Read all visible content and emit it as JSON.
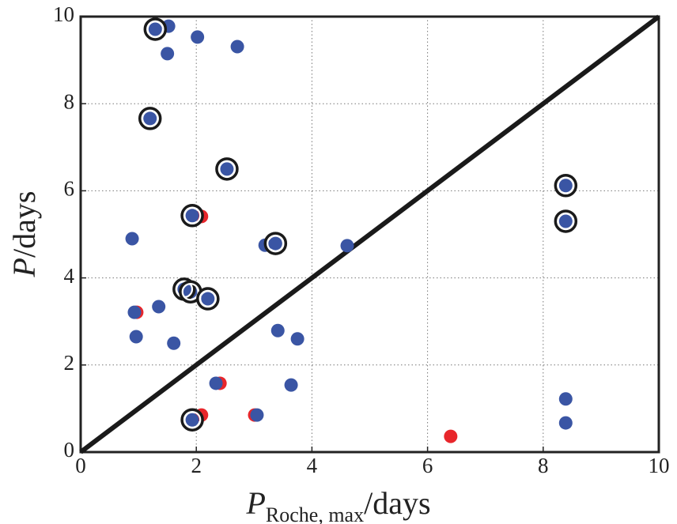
{
  "chart_data": {
    "type": "scatter",
    "x_label": {
      "symbol": "P",
      "subscript": "Roche, max",
      "unit": "/days"
    },
    "y_label": {
      "symbol": "P",
      "unit": "/days"
    },
    "xlim": [
      0,
      10
    ],
    "ylim": [
      0,
      10
    ],
    "xticks": [
      0,
      2,
      4,
      6,
      8,
      10
    ],
    "yticks": [
      0,
      2,
      4,
      6,
      8,
      10
    ],
    "grid": true,
    "reference_line": {
      "x": [
        0,
        10
      ],
      "values": [
        0,
        10
      ],
      "color": "#1a1a1a"
    },
    "series": [
      {
        "color": "#e8262b",
        "marker": "dot",
        "x": [
          2.09,
          0.97,
          2.41,
          3.01,
          2.09,
          6.4
        ],
        "values": [
          5.41,
          3.21,
          1.58,
          0.85,
          0.85,
          0.36
        ]
      },
      {
        "color": "#3a55a4",
        "marker": "dot",
        "x": [
          1.29,
          1.52,
          1.5,
          2.02,
          2.71,
          1.2,
          2.53,
          8.39,
          8.39,
          1.93,
          0.89,
          3.19,
          3.37,
          4.61,
          1.79,
          1.9,
          2.2,
          1.35,
          0.93,
          3.41,
          3.75,
          0.96,
          1.61,
          2.34,
          3.64,
          8.39,
          8.39,
          3.05,
          1.93
        ],
        "values": [
          9.71,
          9.78,
          9.15,
          9.53,
          9.31,
          7.66,
          6.5,
          6.12,
          5.3,
          5.43,
          4.9,
          4.75,
          4.79,
          4.74,
          3.74,
          3.68,
          3.52,
          3.34,
          3.21,
          2.79,
          2.6,
          2.65,
          2.5,
          1.58,
          1.54,
          1.22,
          0.67,
          0.85,
          0.74
        ]
      },
      {
        "color": "#1a1a1a",
        "marker": "ring",
        "x": [
          1.29,
          1.2,
          2.53,
          8.39,
          8.39,
          1.93,
          3.37,
          1.79,
          1.9,
          2.2,
          1.93
        ],
        "values": [
          9.71,
          7.66,
          6.5,
          6.12,
          5.3,
          5.43,
          4.79,
          3.74,
          3.68,
          3.52,
          0.74
        ]
      }
    ]
  }
}
